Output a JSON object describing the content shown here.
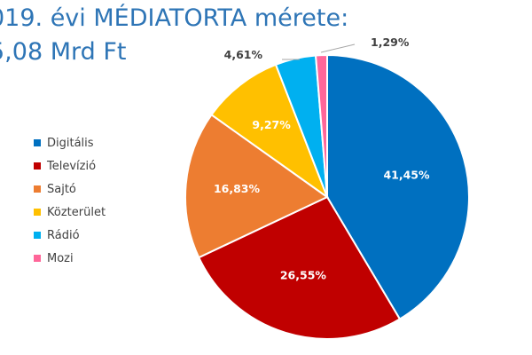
{
  "title": {
    "line1": "019. évi MÉDIATORTA mérete:",
    "line2": "5,08 Mrd Ft"
  },
  "chart_data": {
    "type": "pie",
    "title": "019. évi MÉDIATORTA mérete: 5,08 Mrd Ft",
    "legend_position": "left",
    "start_angle_deg": 0,
    "direction": "clockwise",
    "slices": [
      {
        "label": "Digitális",
        "value": 41.45,
        "value_label": "41,45%",
        "color": "#0070c0",
        "label_placement": "inside",
        "label_color": "#ffffff"
      },
      {
        "label": "Televízió",
        "value": 26.55,
        "value_label": "26,55%",
        "color": "#c00000",
        "label_placement": "inside",
        "label_color": "#ffffff"
      },
      {
        "label": "Sajtó",
        "value": 16.83,
        "value_label": "16,83%",
        "color": "#ed7d31",
        "label_placement": "inside",
        "label_color": "#ffffff"
      },
      {
        "label": "Közterület",
        "value": 9.27,
        "value_label": "9,27%",
        "color": "#ffc000",
        "label_placement": "inside",
        "label_color": "#ffffff"
      },
      {
        "label": "Rádió",
        "value": 4.61,
        "value_label": "4,61%",
        "color": "#00b0f0",
        "label_placement": "outside",
        "label_color": "#404040"
      },
      {
        "label": "Mozi",
        "value": 1.29,
        "value_label": "1,29%",
        "color": "#ff6699",
        "label_placement": "outside",
        "label_color": "#404040"
      }
    ]
  }
}
